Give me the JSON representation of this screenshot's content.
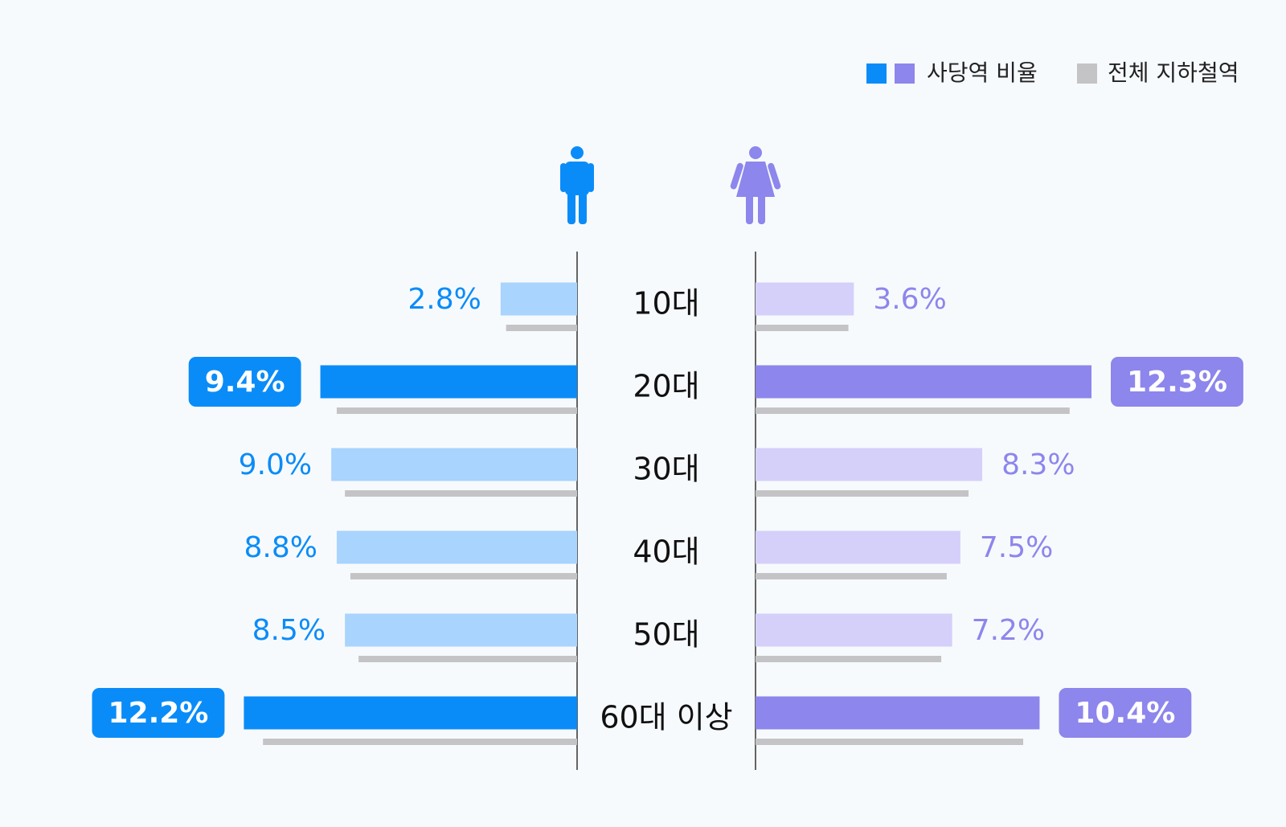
{
  "chart_data": {
    "type": "pyramid",
    "categories": [
      "10대",
      "20대",
      "30대",
      "40대",
      "50대",
      "60대 이상"
    ],
    "series": [
      {
        "side": "left",
        "color": "#0a8cf8",
        "light_color": "#a8d4fd",
        "values": [
          2.8,
          9.4,
          9.0,
          8.8,
          8.5,
          12.2
        ],
        "value_labels": [
          "2.8%",
          "9.4%",
          "9.0%",
          "8.8%",
          "8.5%",
          "12.2%"
        ],
        "highlight": [
          false,
          true,
          false,
          false,
          false,
          true
        ]
      },
      {
        "side": "right",
        "color": "#8d86ec",
        "light_color": "#d4d0fa",
        "values": [
          3.6,
          12.3,
          8.3,
          7.5,
          7.2,
          10.4
        ],
        "value_labels": [
          "3.6%",
          "12.3%",
          "8.3%",
          "7.5%",
          "7.2%",
          "10.4%"
        ],
        "highlight": [
          false,
          true,
          false,
          false,
          false,
          true
        ]
      }
    ],
    "reference": {
      "name": "전체 지하철역",
      "color": "#c4c4c6",
      "left": [
        2.6,
        8.8,
        8.5,
        8.3,
        8.0,
        11.5
      ],
      "right": [
        3.4,
        11.5,
        7.8,
        7.0,
        6.8,
        9.8
      ]
    },
    "legend": [
      "사당역 비율",
      "전체 지하철역"
    ],
    "xlim": [
      0,
      12.3
    ]
  }
}
